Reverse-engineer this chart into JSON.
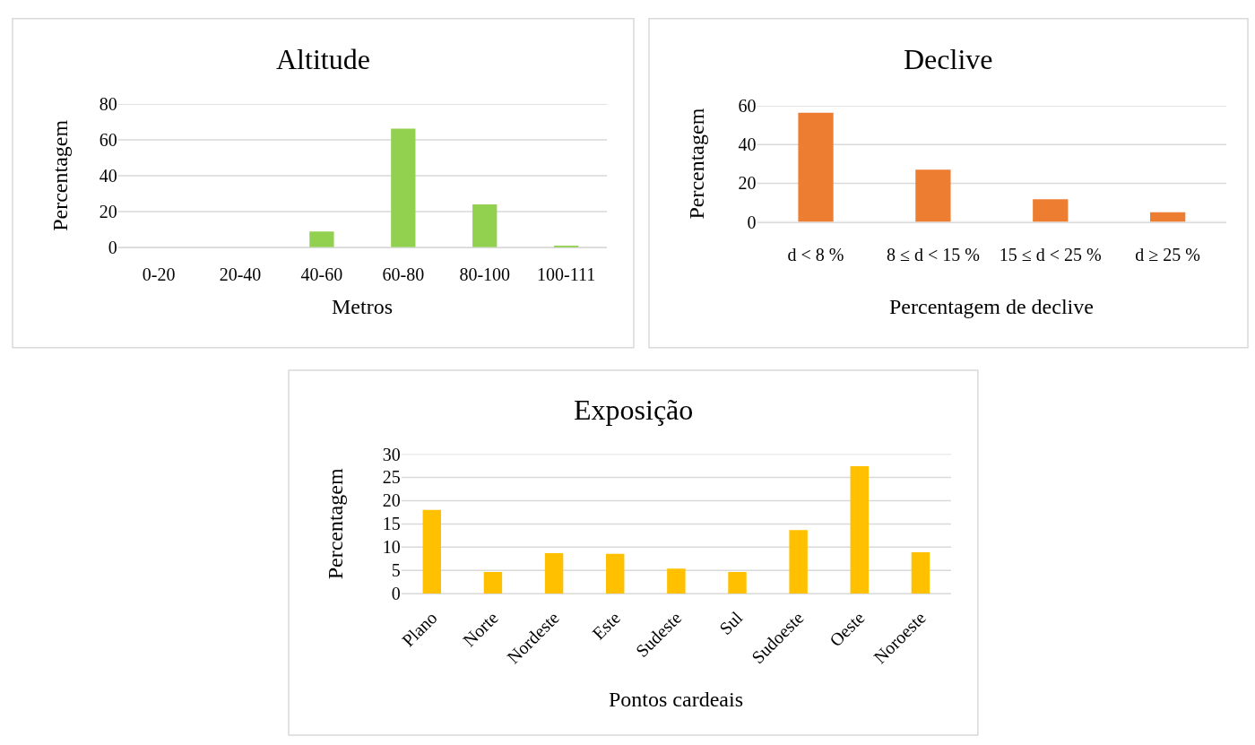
{
  "chart_data": [
    {
      "type": "bar",
      "title": "Altitude",
      "xlabel": "Metros",
      "ylabel": "Percentagem",
      "categories": [
        "0-20",
        "20-40",
        "40-60",
        "60-80",
        "80-100",
        "100-111"
      ],
      "values": [
        0,
        0,
        8.8,
        66.3,
        23.9,
        0.9
      ],
      "color": "#92d050",
      "ylim": [
        0,
        80
      ],
      "yticks": [
        0,
        20,
        40,
        60,
        80
      ],
      "grid": "y"
    },
    {
      "type": "bar",
      "title": "Declive",
      "xlabel": "Percentagem de declive",
      "ylabel": "Percentagem",
      "categories": [
        "d < 8 %",
        "8 ≤ d < 15 %",
        "15 ≤ d < 25 %",
        "d ≥ 25 %"
      ],
      "values": [
        56.4,
        27,
        11.7,
        5
      ],
      "color": "#ed7d31",
      "ylim": [
        0,
        60
      ],
      "yticks": [
        0,
        20,
        40,
        60
      ],
      "grid": "y"
    },
    {
      "type": "bar",
      "title": "Exposição",
      "xlabel": "Pontos cardeais",
      "ylabel": "Percentagem",
      "categories": [
        "Plano",
        "Norte",
        "Nordeste",
        "Este",
        "Sudeste",
        "Sul",
        "Sudoeste",
        "Oeste",
        "Noroeste"
      ],
      "values": [
        18,
        4.7,
        8.7,
        8.6,
        5.4,
        4.7,
        13.7,
        27.4,
        8.9
      ],
      "color": "#ffc000",
      "ylim": [
        0,
        30
      ],
      "yticks": [
        0,
        5,
        10,
        15,
        20,
        25,
        30
      ],
      "grid": "y"
    }
  ]
}
